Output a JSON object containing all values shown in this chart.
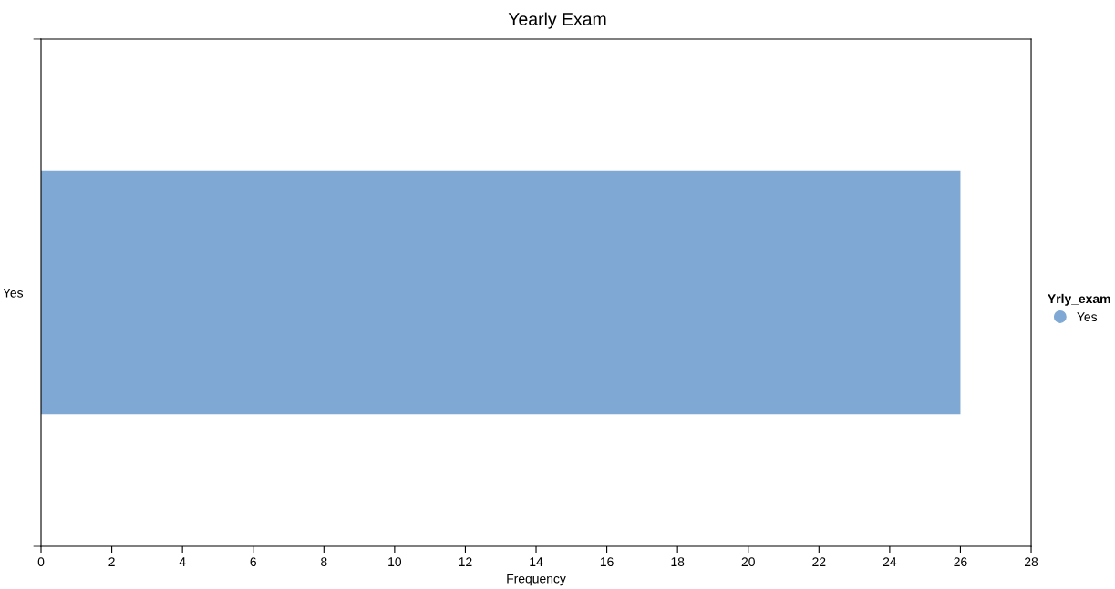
{
  "chart_data": {
    "type": "bar",
    "orientation": "horizontal",
    "title": "Yearly Exam",
    "xlabel": "Frequency",
    "legend_title": "Yrly_exam",
    "categories": [
      "Yes"
    ],
    "series": [
      {
        "name": "Yes",
        "color": "#7fa9d4",
        "values": [
          26
        ]
      }
    ],
    "xlim": [
      0,
      28
    ],
    "xticks": [
      0,
      2,
      4,
      6,
      8,
      10,
      12,
      14,
      16,
      18,
      20,
      22,
      24,
      26,
      28
    ],
    "grid": false,
    "legend": "right"
  }
}
